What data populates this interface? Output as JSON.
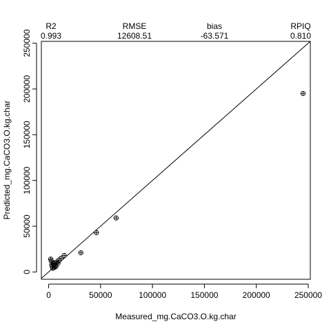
{
  "chart_data": {
    "type": "scatter",
    "xlabel": "Measured_mg.CaCO3.O.kg.char",
    "ylabel": "Predicted_mg.CaCO3.O.kg.char",
    "xlim": [
      -7000,
      252000
    ],
    "ylim": [
      -8000,
      252000
    ],
    "xticks": [
      0,
      50000,
      100000,
      150000,
      200000,
      250000
    ],
    "yticks": [
      0,
      50000,
      100000,
      150000,
      200000,
      250000
    ],
    "reference_line": "1:1",
    "stats": [
      {
        "label": "R2",
        "value": "0.993"
      },
      {
        "label": "RMSE",
        "value": "12608.51"
      },
      {
        "label": "bias",
        "value": "-63.571"
      },
      {
        "label": "RPIQ",
        "value": "0.810"
      }
    ],
    "points": [
      {
        "x": 2000,
        "y": 14000
      },
      {
        "x": 2500,
        "y": 12000
      },
      {
        "x": 3000,
        "y": 8000
      },
      {
        "x": 3500,
        "y": 6000
      },
      {
        "x": 4000,
        "y": 4000
      },
      {
        "x": 4500,
        "y": 9000
      },
      {
        "x": 5000,
        "y": 7000
      },
      {
        "x": 5500,
        "y": 5000
      },
      {
        "x": 6000,
        "y": 10000
      },
      {
        "x": 6500,
        "y": 7500
      },
      {
        "x": 7000,
        "y": 6000
      },
      {
        "x": 8000,
        "y": 11000
      },
      {
        "x": 9000,
        "y": 9500
      },
      {
        "x": 10000,
        "y": 13000
      },
      {
        "x": 12000,
        "y": 15000
      },
      {
        "x": 15000,
        "y": 18000
      },
      {
        "x": 31000,
        "y": 21000
      },
      {
        "x": 46000,
        "y": 43000
      },
      {
        "x": 65000,
        "y": 59000
      },
      {
        "x": 245000,
        "y": 195000
      }
    ]
  }
}
